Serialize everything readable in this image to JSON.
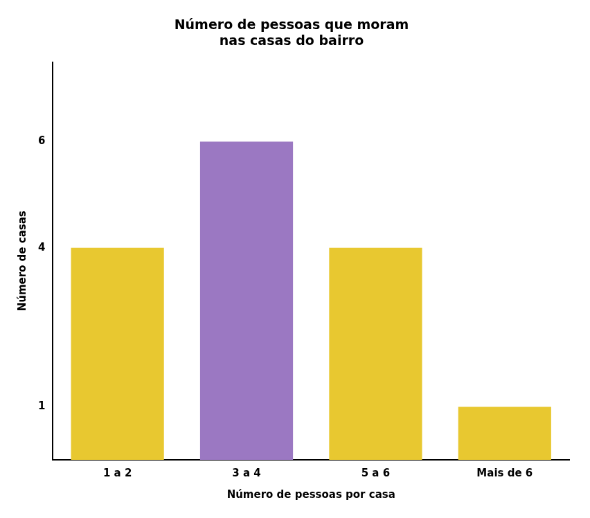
{
  "chart_data": {
    "type": "bar",
    "title": "Número de pessoas que moram\nnas casas do bairro",
    "xlabel": "Número de pessoas por casa",
    "ylabel": "Número de casas",
    "categories": [
      "1 a 2",
      "3 a 4",
      "5 a 6",
      "Mais de 6"
    ],
    "values": [
      4,
      6,
      4,
      1
    ],
    "colors": [
      "#E8C830",
      "#9B78C2",
      "#E8C830",
      "#E8C830"
    ],
    "ylim": [
      0,
      7.5
    ],
    "yticks": [
      1,
      4,
      6
    ],
    "grid": false
  }
}
